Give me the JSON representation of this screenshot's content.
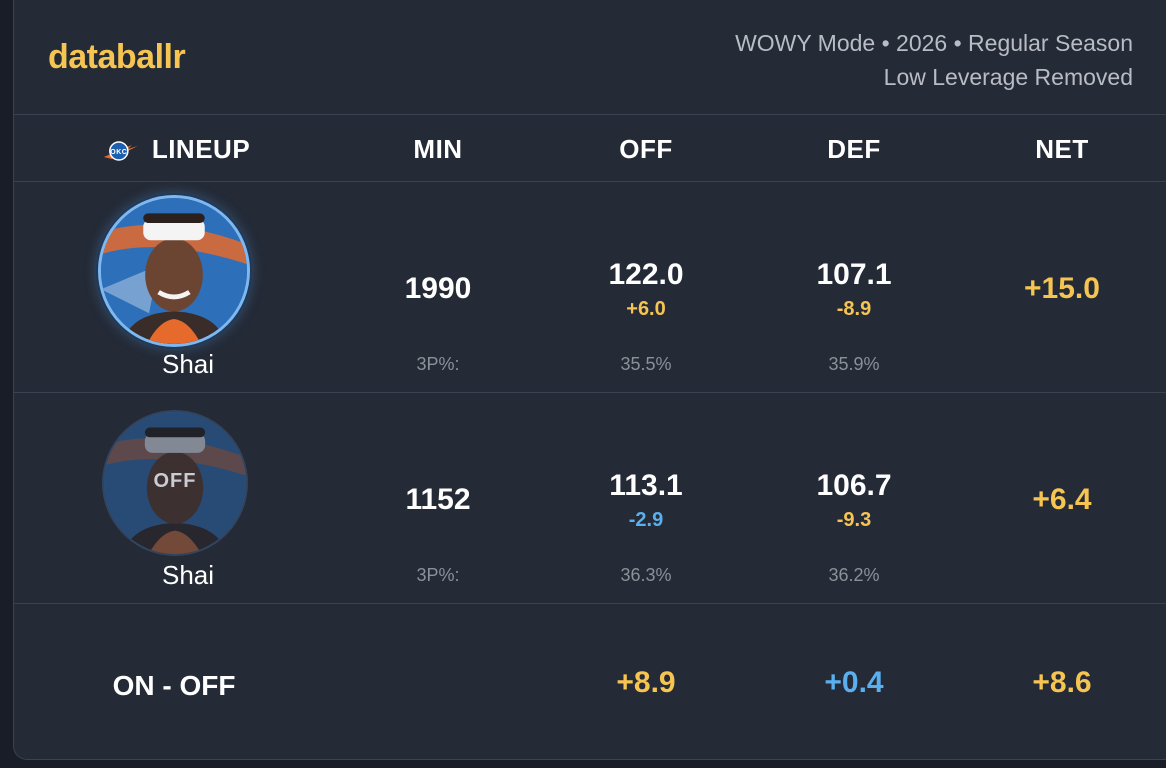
{
  "brand": {
    "logo": "databallr",
    "color": "#f5c451"
  },
  "meta": {
    "line1": "WOWY Mode • 2026 • Regular Season",
    "line2": "Low Leverage Removed"
  },
  "columns": {
    "team_icon": "okc-logo-icon",
    "lineup": "LINEUP",
    "min": "MIN",
    "off": "OFF",
    "def": "DEF",
    "net": "NET"
  },
  "rows": [
    {
      "player": "Shai",
      "status": "on",
      "min": "1990",
      "off": "122.0",
      "off_delta": "+6.0",
      "def": "107.1",
      "def_delta": "-8.9",
      "net": "+15.0",
      "tp_label": "3P%:",
      "off_3p": "35.5%",
      "def_3p": "35.9%"
    },
    {
      "player": "Shai",
      "status": "off",
      "overlay": "OFF",
      "min": "1152",
      "off": "113.1",
      "off_delta": "-2.9",
      "def": "106.7",
      "def_delta": "-9.3",
      "net": "+6.4",
      "tp_label": "3P%:",
      "off_3p": "36.3%",
      "def_3p": "36.2%"
    }
  ],
  "summary": {
    "label": "ON - OFF",
    "off": "+8.9",
    "def": "+0.4",
    "net": "+8.6"
  },
  "colors": {
    "positive": "#f5c451",
    "negative_good": "#5ab0ee",
    "background": "#242a36"
  }
}
